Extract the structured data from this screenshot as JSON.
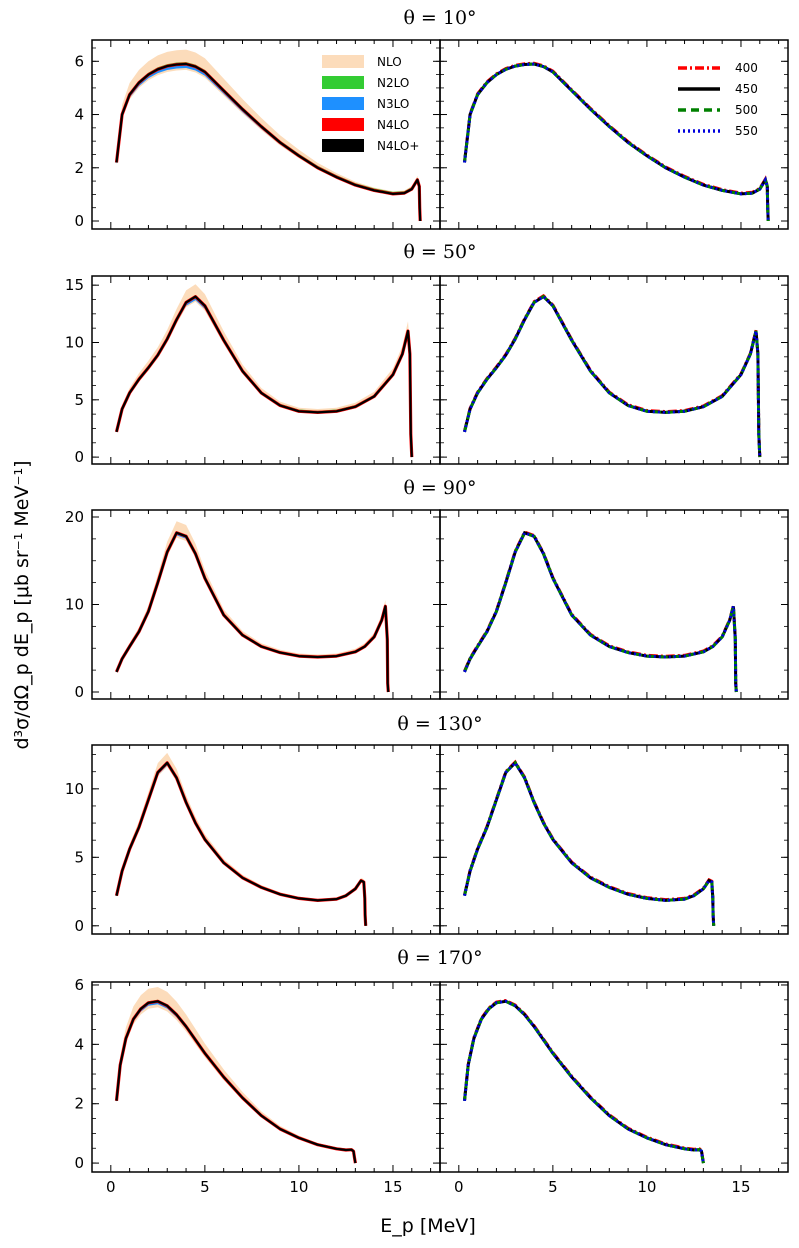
{
  "chart_data": {
    "type": "line",
    "xlabel": "E_p [MeV]",
    "ylabel": "d³σ/dΩ_p dE_p [μb sr⁻¹ MeV⁻¹]",
    "xlim": [
      -1,
      17.5
    ],
    "xticks": [
      0,
      5,
      10,
      15
    ],
    "legend_left": {
      "placement": "top-right of left panel in first row",
      "entries": [
        {
          "name": "NLO",
          "color": "#fcdcbb",
          "style": "band"
        },
        {
          "name": "N2LO",
          "color": "#33cc33",
          "style": "band"
        },
        {
          "name": "N3LO",
          "color": "#1e90ff",
          "style": "band"
        },
        {
          "name": "N4LO",
          "color": "#ff0000",
          "style": "band"
        },
        {
          "name": "N4LO+",
          "color": "#000000",
          "style": "band"
        }
      ]
    },
    "legend_right": {
      "placement": "top-right of right panel in first row",
      "entries": [
        {
          "name": "400",
          "color": "#ff0000",
          "style": "dashdot"
        },
        {
          "name": "450",
          "color": "#000000",
          "style": "solid"
        },
        {
          "name": "500",
          "color": "#008000",
          "style": "dashed"
        },
        {
          "name": "550",
          "color": "#0000dd",
          "style": "dotted"
        }
      ]
    },
    "panels": [
      {
        "title": "θ = 10°",
        "ylim": [
          -0.3,
          6.8
        ],
        "yticks": [
          0,
          2,
          4,
          6
        ],
        "x": [
          0.3,
          0.6,
          1.0,
          1.5,
          2.0,
          2.5,
          3.0,
          3.5,
          4.0,
          4.5,
          5.0,
          6.0,
          7.0,
          8.0,
          9.0,
          10.0,
          11.0,
          12.0,
          13.0,
          14.0,
          15.0,
          15.6,
          16.0,
          16.3,
          16.4,
          16.42,
          16.45
        ],
        "central": [
          2.2,
          4.0,
          4.75,
          5.2,
          5.5,
          5.7,
          5.82,
          5.88,
          5.9,
          5.8,
          5.6,
          4.9,
          4.2,
          3.55,
          2.95,
          2.45,
          2.0,
          1.65,
          1.35,
          1.15,
          1.02,
          1.05,
          1.2,
          1.55,
          1.3,
          0.5,
          0.0
        ],
        "band_nlo": 0.45,
        "band_n3lo": 0.15
      },
      {
        "title": "θ = 50°",
        "ylim": [
          -0.6,
          15.8
        ],
        "yticks": [
          0,
          5,
          10,
          15
        ],
        "x": [
          0.3,
          0.6,
          1.0,
          1.5,
          2.0,
          2.5,
          3.0,
          3.5,
          4.0,
          4.5,
          5.0,
          6.0,
          7.0,
          8.0,
          9.0,
          10.0,
          11.0,
          12.0,
          13.0,
          14.0,
          15.0,
          15.5,
          15.8,
          15.9,
          15.95,
          16.0
        ],
        "central": [
          2.2,
          4.2,
          5.6,
          6.8,
          7.8,
          8.9,
          10.3,
          12.0,
          13.5,
          14.0,
          13.2,
          10.2,
          7.5,
          5.6,
          4.5,
          4.0,
          3.9,
          4.0,
          4.4,
          5.3,
          7.2,
          9.0,
          11.0,
          9.0,
          2.0,
          0.0
        ],
        "band_nlo": 0.9,
        "band_n3lo": 0.3
      },
      {
        "title": "θ = 90°",
        "ylim": [
          -0.8,
          20.8
        ],
        "yticks": [
          0,
          10,
          20
        ],
        "x": [
          0.3,
          0.6,
          1.0,
          1.5,
          2.0,
          2.5,
          3.0,
          3.5,
          4.0,
          4.5,
          5.0,
          6.0,
          7.0,
          8.0,
          9.0,
          10.0,
          11.0,
          12.0,
          13.0,
          13.5,
          14.0,
          14.4,
          14.6,
          14.7,
          14.72,
          14.75
        ],
        "central": [
          2.3,
          3.8,
          5.2,
          6.9,
          9.2,
          12.5,
          16.0,
          18.2,
          17.8,
          15.8,
          13.0,
          8.8,
          6.5,
          5.2,
          4.5,
          4.1,
          4.0,
          4.1,
          4.6,
          5.2,
          6.3,
          8.2,
          9.8,
          6.0,
          1.0,
          0.0
        ],
        "band_nlo": 1.1,
        "band_n3lo": 0.3
      },
      {
        "title": "θ = 130°",
        "ylim": [
          -0.6,
          13.2
        ],
        "yticks": [
          0,
          5,
          10
        ],
        "x": [
          0.3,
          0.6,
          1.0,
          1.5,
          2.0,
          2.5,
          3.0,
          3.5,
          4.0,
          4.5,
          5.0,
          6.0,
          7.0,
          8.0,
          9.0,
          10.0,
          11.0,
          12.0,
          12.5,
          13.0,
          13.3,
          13.45,
          13.5,
          13.52,
          13.55
        ],
        "central": [
          2.2,
          4.0,
          5.6,
          7.2,
          9.2,
          11.2,
          11.9,
          10.8,
          9.0,
          7.5,
          6.3,
          4.6,
          3.5,
          2.8,
          2.3,
          2.0,
          1.85,
          1.95,
          2.2,
          2.7,
          3.3,
          3.2,
          2.0,
          0.8,
          0.0
        ],
        "band_nlo": 0.6,
        "band_n3lo": 0.2
      },
      {
        "title": "θ = 170°",
        "ylim": [
          -0.3,
          6.1
        ],
        "yticks": [
          0,
          2,
          4,
          6
        ],
        "x": [
          0.3,
          0.5,
          0.8,
          1.2,
          1.6,
          2.0,
          2.5,
          3.0,
          3.5,
          4.0,
          4.5,
          5.0,
          6.0,
          7.0,
          8.0,
          9.0,
          10.0,
          11.0,
          12.0,
          12.5,
          12.8,
          12.9,
          12.95,
          13.0
        ],
        "central": [
          2.1,
          3.3,
          4.2,
          4.85,
          5.2,
          5.4,
          5.45,
          5.3,
          5.0,
          4.6,
          4.15,
          3.7,
          2.9,
          2.2,
          1.6,
          1.15,
          0.85,
          0.62,
          0.48,
          0.44,
          0.45,
          0.4,
          0.2,
          0.0
        ],
        "band_nlo": 0.4,
        "band_n3lo": 0.1
      }
    ]
  }
}
